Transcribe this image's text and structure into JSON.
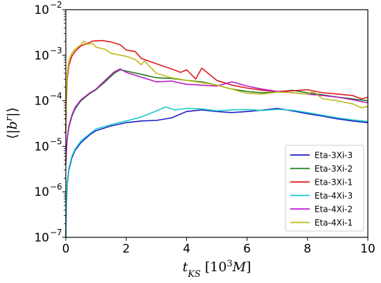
{
  "chart_data": {
    "type": "line",
    "title": "",
    "xlabel": "t_KS [10^3 M]",
    "ylabel": "⟨|b^r|⟩",
    "xlim": [
      0,
      10
    ],
    "ylim": [
      1e-07,
      0.01
    ],
    "yscale": "log",
    "grid": false,
    "legend_position": "lower-right",
    "x_ticks": [
      "0",
      "2",
      "4",
      "6",
      "8",
      "10"
    ],
    "y_ticks": [
      {
        "base": "10",
        "exp": "−7",
        "value": 1e-07
      },
      {
        "base": "10",
        "exp": "−6",
        "value": 1e-06
      },
      {
        "base": "10",
        "exp": "−5",
        "value": 1e-05
      },
      {
        "base": "10",
        "exp": "−4",
        "value": 0.0001
      },
      {
        "base": "10",
        "exp": "−3",
        "value": 0.001
      },
      {
        "base": "10",
        "exp": "−2",
        "value": 0.01
      }
    ],
    "series": [
      {
        "name": "Eta-3Xi-3",
        "color": "#1a1ac8",
        "x": [
          0.0,
          0.02,
          0.05,
          0.1,
          0.2,
          0.3,
          0.5,
          0.8,
          1.0,
          1.5,
          2.0,
          2.5,
          3.0,
          3.5,
          4.0,
          4.5,
          5.0,
          5.5,
          6.0,
          6.5,
          7.0,
          7.5,
          8.0,
          8.5,
          9.0,
          9.5,
          10.0
        ],
        "y": [
          1e-07,
          6e-07,
          1.5e-06,
          3e-06,
          5.5e-06,
          8e-06,
          1.2e-05,
          1.8e-05,
          2.2e-05,
          2.8e-05,
          3.3e-05,
          3.6e-05,
          3.7e-05,
          4.2e-05,
          5.8e-05,
          6.3e-05,
          5.8e-05,
          5.5e-05,
          5.8e-05,
          6.2e-05,
          6.8e-05,
          6e-05,
          5.2e-05,
          4.6e-05,
          4e-05,
          3.6e-05,
          3.3e-05
        ]
      },
      {
        "name": "Eta-3Xi-2",
        "color": "#1a7a1a",
        "x": [
          0.0,
          0.02,
          0.05,
          0.1,
          0.2,
          0.3,
          0.5,
          0.8,
          1.0,
          1.3,
          1.6,
          1.8,
          2.0,
          2.5,
          3.0,
          3.5,
          4.0,
          4.5,
          5.0,
          5.5,
          6.0,
          6.5,
          7.0,
          7.5,
          8.0,
          8.5,
          9.0,
          9.5,
          10.0
        ],
        "y": [
          4e-06,
          8e-06,
          1.5e-05,
          2.6e-05,
          4.5e-05,
          6.5e-05,
          0.0001,
          0.000145,
          0.000175,
          0.00026,
          0.0004,
          0.00048,
          0.00045,
          0.00038,
          0.00032,
          0.00031,
          0.00028,
          0.00026,
          0.00022,
          0.00018,
          0.00016,
          0.00015,
          0.000155,
          0.00017,
          0.00015,
          0.000135,
          0.00012,
          0.00011,
          0.0001
        ]
      },
      {
        "name": "Eta-3Xi-1",
        "color": "#e01818",
        "x": [
          0.0,
          0.02,
          0.05,
          0.1,
          0.2,
          0.3,
          0.5,
          0.7,
          0.9,
          1.2,
          1.5,
          1.8,
          2.0,
          2.3,
          2.5,
          3.0,
          3.5,
          3.8,
          4.0,
          4.3,
          4.5,
          5.0,
          5.5,
          6.0,
          6.5,
          7.0,
          7.5,
          8.0,
          8.5,
          9.0,
          9.5,
          9.8,
          10.0
        ],
        "y": [
          2e-05,
          0.0001,
          0.0003,
          0.0006,
          0.00095,
          0.0012,
          0.0016,
          0.0018,
          0.00205,
          0.0021,
          0.00195,
          0.0017,
          0.0013,
          0.0012,
          0.00085,
          0.00065,
          0.0005,
          0.00042,
          0.00048,
          0.0003,
          0.00052,
          0.00028,
          0.00022,
          0.00019,
          0.00017,
          0.00016,
          0.000165,
          0.000175,
          0.00015,
          0.00014,
          0.00013,
          0.00011,
          0.00012
        ]
      },
      {
        "name": "Eta-4Xi-3",
        "color": "#18c8c8",
        "x": [
          0.0,
          0.02,
          0.05,
          0.1,
          0.2,
          0.3,
          0.5,
          0.8,
          1.0,
          1.5,
          2.0,
          2.5,
          3.0,
          3.3,
          3.6,
          4.0,
          4.5,
          5.0,
          5.5,
          6.0,
          6.5,
          7.0,
          7.5,
          8.0,
          8.5,
          9.0,
          9.5,
          10.0
        ],
        "y": [
          1e-07,
          7e-07,
          1.7e-06,
          3.3e-06,
          6e-06,
          8.5e-06,
          1.3e-05,
          1.9e-05,
          2.4e-05,
          3e-05,
          3.6e-05,
          4.4e-05,
          6e-05,
          7.3e-05,
          6.3e-05,
          6.8e-05,
          6.6e-05,
          6e-05,
          6.3e-05,
          6.4e-05,
          6.1e-05,
          6.5e-05,
          6.2e-05,
          5.5e-05,
          4.8e-05,
          4.2e-05,
          3.8e-05,
          3.5e-05
        ]
      },
      {
        "name": "Eta-4Xi-2",
        "color": "#b818c8",
        "x": [
          0.0,
          0.02,
          0.05,
          0.1,
          0.2,
          0.3,
          0.5,
          0.8,
          1.0,
          1.3,
          1.6,
          1.8,
          2.0,
          2.5,
          3.0,
          3.5,
          4.0,
          4.5,
          5.0,
          5.5,
          6.0,
          6.5,
          7.0,
          7.5,
          8.0,
          8.5,
          9.0,
          9.5,
          10.0
        ],
        "y": [
          4e-06,
          8e-06,
          1.6e-05,
          2.8e-05,
          4.8e-05,
          7e-05,
          0.000105,
          0.00015,
          0.00018,
          0.00028,
          0.00043,
          0.0005,
          0.00042,
          0.00033,
          0.00026,
          0.00027,
          0.00023,
          0.00022,
          0.00021,
          0.00026,
          0.00021,
          0.00018,
          0.00016,
          0.00015,
          0.00014,
          0.00013,
          0.00012,
          0.000105,
          9e-05
        ]
      },
      {
        "name": "Eta-4Xi-1",
        "color": "#c0b818",
        "x": [
          0.0,
          0.02,
          0.05,
          0.1,
          0.2,
          0.3,
          0.5,
          0.6,
          0.7,
          0.9,
          1.0,
          1.3,
          1.5,
          1.8,
          2.0,
          2.3,
          2.5,
          2.6,
          3.0,
          3.5,
          4.0,
          4.5,
          5.0,
          5.5,
          6.0,
          6.5,
          7.0,
          7.5,
          8.0,
          8.2,
          8.5,
          9.0,
          9.5,
          9.8,
          10.0
        ],
        "y": [
          2e-05,
          0.00012,
          0.0004,
          0.00075,
          0.0011,
          0.00135,
          0.0017,
          0.00205,
          0.00175,
          0.0018,
          0.0015,
          0.00135,
          0.0011,
          0.001,
          0.00095,
          0.0008,
          0.00062,
          0.00075,
          0.0004,
          0.00032,
          0.00028,
          0.00025,
          0.00022,
          0.00018,
          0.000145,
          0.00014,
          0.000155,
          0.00015,
          0.00014,
          0.00016,
          0.00011,
          0.0001,
          8.5e-05,
          7e-05,
          7.5e-05
        ]
      }
    ]
  }
}
